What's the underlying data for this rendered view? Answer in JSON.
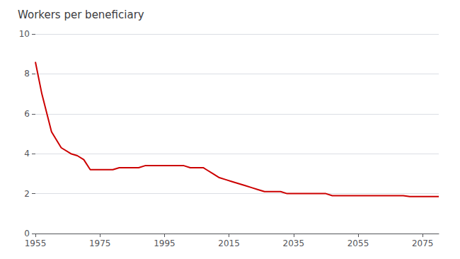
{
  "chart_data": {
    "type": "line",
    "title": "Workers per beneficiary",
    "x": [
      1955,
      1957,
      1960,
      1963,
      1966,
      1968,
      1970,
      1972,
      1974,
      1975,
      1977,
      1979,
      1981,
      1983,
      1985,
      1987,
      1989,
      1991,
      1993,
      1995,
      1997,
      1999,
      2001,
      2003,
      2005,
      2007,
      2008,
      2010,
      2012,
      2014,
      2016,
      2018,
      2020,
      2022,
      2024,
      2026,
      2028,
      2030,
      2031,
      2033,
      2035,
      2037,
      2039,
      2041,
      2043,
      2045,
      2047,
      2049,
      2051,
      2053,
      2055,
      2057,
      2059,
      2061,
      2063,
      2065,
      2067,
      2069,
      2071,
      2073,
      2075,
      2077,
      2079,
      2080
    ],
    "values": [
      8.6,
      7.0,
      5.1,
      4.3,
      4.0,
      3.9,
      3.7,
      3.2,
      3.2,
      3.2,
      3.2,
      3.2,
      3.3,
      3.3,
      3.3,
      3.3,
      3.4,
      3.4,
      3.4,
      3.4,
      3.4,
      3.4,
      3.4,
      3.3,
      3.3,
      3.3,
      3.2,
      3.0,
      2.8,
      2.7,
      2.6,
      2.5,
      2.4,
      2.3,
      2.2,
      2.1,
      2.1,
      2.1,
      2.1,
      2.0,
      2.0,
      2.0,
      2.0,
      2.0,
      2.0,
      2.0,
      1.9,
      1.9,
      1.9,
      1.9,
      1.9,
      1.9,
      1.9,
      1.9,
      1.9,
      1.9,
      1.9,
      1.9,
      1.85,
      1.85,
      1.85,
      1.85,
      1.85,
      1.85
    ],
    "color": "#cc0000",
    "xlim": [
      1955,
      2080
    ],
    "xticks": [
      1955,
      1975,
      1995,
      2015,
      2035,
      2055,
      2075
    ],
    "ylim": [
      0,
      10
    ],
    "yticks": [
      0,
      2,
      4,
      6,
      8,
      10
    ],
    "grid": true
  }
}
